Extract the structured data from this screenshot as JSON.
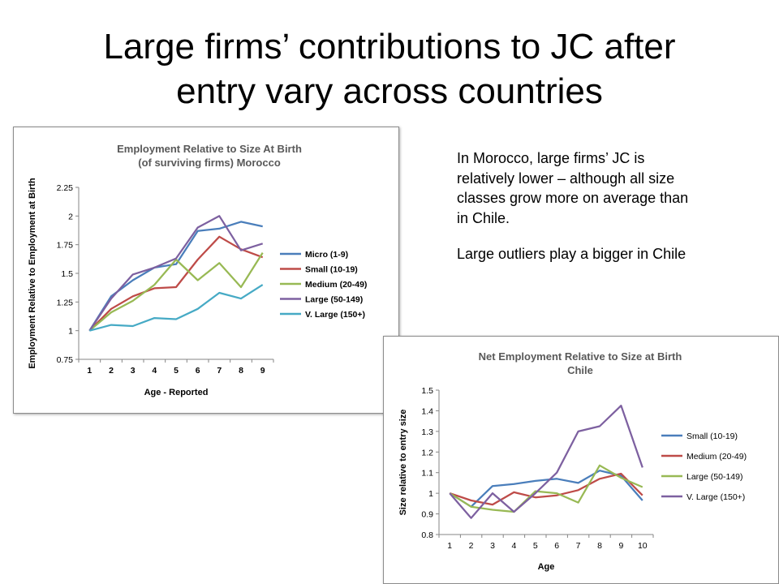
{
  "slide": {
    "title_line1": "Large firms’ contributions to JC after",
    "title_line2": "entry vary across countries",
    "notes": [
      "In Morocco, large firms’ JC is relatively lower – although all size classes grow more on average than in Chile.",
      "Large outliers play a bigger in Chile"
    ]
  },
  "chart_data": [
    {
      "type": "line",
      "title": "Employment Relative to Size At Birth (of surviving firms) Morocco",
      "title_lines": [
        "Employment Relative to Size At Birth",
        "(of surviving firms) Morocco"
      ],
      "xlabel": "Age - Reported",
      "ylabel": "Employment Relative to Employment at Birth",
      "categories": [
        "1",
        "2",
        "3",
        "4",
        "5",
        "6",
        "7",
        "8",
        "9"
      ],
      "ylim": [
        0.75,
        2.25
      ],
      "yticks": [
        0.75,
        1,
        1.25,
        1.5,
        1.75,
        2,
        2.25
      ],
      "ytick_labels": [
        "0.75",
        "1",
        "1.25",
        "1.5",
        "1.75",
        "2",
        "2.25"
      ],
      "grid": false,
      "legend_position": "right",
      "series": [
        {
          "name": "Micro (1-9)",
          "color": "#4a7ebb",
          "values": [
            1.0,
            1.3,
            1.44,
            1.55,
            1.58,
            1.87,
            1.89,
            1.95,
            1.91
          ]
        },
        {
          "name": "Small (10-19)",
          "color": "#be4b48",
          "values": [
            1.0,
            1.19,
            1.3,
            1.37,
            1.38,
            1.62,
            1.82,
            1.71,
            1.64
          ]
        },
        {
          "name": "Medium (20-49)",
          "color": "#98b954",
          "values": [
            1.0,
            1.16,
            1.26,
            1.4,
            1.62,
            1.44,
            1.59,
            1.38,
            1.68
          ]
        },
        {
          "name": "Large (50-149)",
          "color": "#7d60a0",
          "values": [
            1.0,
            1.28,
            1.49,
            1.55,
            1.63,
            1.9,
            2.0,
            1.7,
            1.76
          ]
        },
        {
          "name": "V. Large (150+)",
          "color": "#46aac5",
          "values": [
            1.0,
            1.05,
            1.04,
            1.11,
            1.1,
            1.19,
            1.33,
            1.28,
            1.4
          ]
        }
      ]
    },
    {
      "type": "line",
      "title": "Net Employment Relative to Size at Birth Chile",
      "title_lines": [
        "Net Employment Relative to Size at Birth",
        "Chile"
      ],
      "xlabel": "Age",
      "ylabel": "Size relative to entry size",
      "categories": [
        "1",
        "2",
        "3",
        "4",
        "5",
        "6",
        "7",
        "8",
        "9",
        "10"
      ],
      "ylim": [
        0.8,
        1.5
      ],
      "yticks": [
        0.8,
        0.9,
        1,
        1.1,
        1.2,
        1.3,
        1.4,
        1.5
      ],
      "ytick_labels": [
        "0.8",
        "0.9",
        "1",
        "1.1",
        "1.2",
        "1.3",
        "1.4",
        "1.5"
      ],
      "grid": false,
      "legend_position": "right",
      "series": [
        {
          "name": "Small (10-19)",
          "color": "#4a7ebb",
          "values": [
            1.0,
            0.935,
            1.035,
            1.045,
            1.06,
            1.07,
            1.05,
            1.11,
            1.085,
            0.965
          ]
        },
        {
          "name": "Medium (20-49)",
          "color": "#be4b48",
          "values": [
            1.0,
            0.965,
            0.945,
            1.005,
            0.98,
            0.99,
            1.015,
            1.07,
            1.095,
            0.99
          ]
        },
        {
          "name": "Large (50-149)",
          "color": "#98b954",
          "values": [
            1.0,
            0.935,
            0.92,
            0.91,
            1.01,
            1.0,
            0.955,
            1.135,
            1.075,
            1.03
          ]
        },
        {
          "name": "V. Large (150+)",
          "color": "#7d60a0",
          "values": [
            1.0,
            0.88,
            1.0,
            0.91,
            1.0,
            1.1,
            1.3,
            1.325,
            1.425,
            1.125
          ]
        }
      ]
    }
  ]
}
